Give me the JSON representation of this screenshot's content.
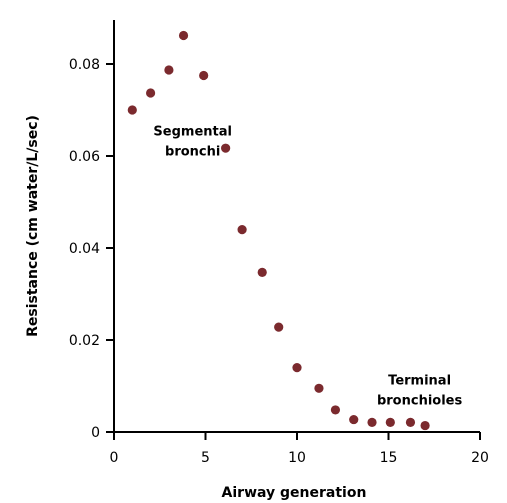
{
  "chart_data": {
    "type": "scatter",
    "title": "",
    "xlabel": "Airway generation",
    "ylabel": "Resistance (cm water/L/sec)",
    "xlim": [
      0,
      20
    ],
    "ylim": [
      0,
      0.09
    ],
    "xticks": [
      0,
      5,
      10,
      15,
      20
    ],
    "xtick_labels": [
      "0",
      "5",
      "10",
      "15",
      "20"
    ],
    "yticks": [
      0,
      0.02,
      0.04,
      0.06,
      0.08
    ],
    "ytick_labels": [
      "0",
      "0.02",
      "0.04",
      "0.06",
      "0.08"
    ],
    "grid": false,
    "legend": "none",
    "marker_color": "#7b2a2e",
    "series": [
      {
        "x": [
          1,
          2,
          3,
          3.8,
          4.9,
          6.1,
          7,
          8.1,
          9,
          10,
          11.2,
          12.1,
          13.1,
          14.1,
          15.1,
          16.2,
          17
        ],
        "y": [
          0.07,
          0.0737,
          0.0787,
          0.0862,
          0.0775,
          0.0617,
          0.044,
          0.0347,
          0.0228,
          0.014,
          0.0095,
          0.0048,
          0.0027,
          0.0021,
          0.0021,
          0.0021,
          0.0014
        ]
      }
    ],
    "annotations": [
      {
        "lines": [
          "Segmental",
          "bronchi"
        ],
        "x": 4.3,
        "y": 0.0645
      },
      {
        "lines": [
          "Terminal",
          "bronchioles"
        ],
        "x": 16.7,
        "y": 0.0103
      }
    ]
  }
}
